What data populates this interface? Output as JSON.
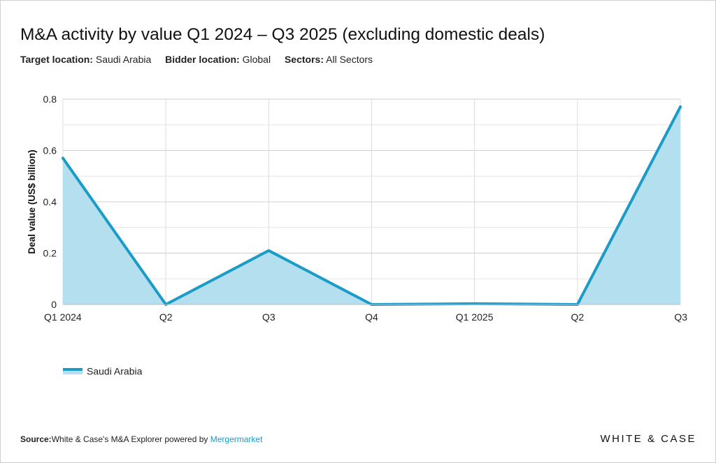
{
  "header": {
    "title": "M&A activity by value Q1 2024 – Q3 2025 (excluding domestic deals)",
    "filters": [
      {
        "label": "Target location:",
        "value": "Saudi Arabia"
      },
      {
        "label": "Bidder location:",
        "value": "Global"
      },
      {
        "label": "Sectors:",
        "value": "All Sectors"
      }
    ]
  },
  "chart_data": {
    "type": "area",
    "title": "M&A activity by value Q1 2024 – Q3 2025 (excluding domestic deals)",
    "xlabel": "",
    "ylabel": "Deal value (US$ billion)",
    "categories": [
      "Q1 2024",
      "Q2",
      "Q3",
      "Q4",
      "Q1 2025",
      "Q2",
      "Q3"
    ],
    "ylim": [
      0,
      0.8
    ],
    "yticks": [
      0,
      0.2,
      0.4,
      0.6,
      0.8
    ],
    "ytick_labels": [
      "0",
      "0.2",
      "0.4",
      "0.6",
      "0.8"
    ],
    "grid": true,
    "legend_position": "bottom-left",
    "series": [
      {
        "name": "Saudi Arabia",
        "values": [
          0.57,
          0.0,
          0.21,
          0.0,
          0.003,
          0.0,
          0.77
        ],
        "color": "#1b9bc7",
        "fill": "#b3dfef"
      }
    ]
  },
  "legend": {
    "label": "Saudi Arabia"
  },
  "footer": {
    "source_label": "Source:",
    "source_text": "White & Case's M&A Explorer powered by",
    "source_link": "Mergermarket",
    "brand": "WHITE & CASE"
  }
}
